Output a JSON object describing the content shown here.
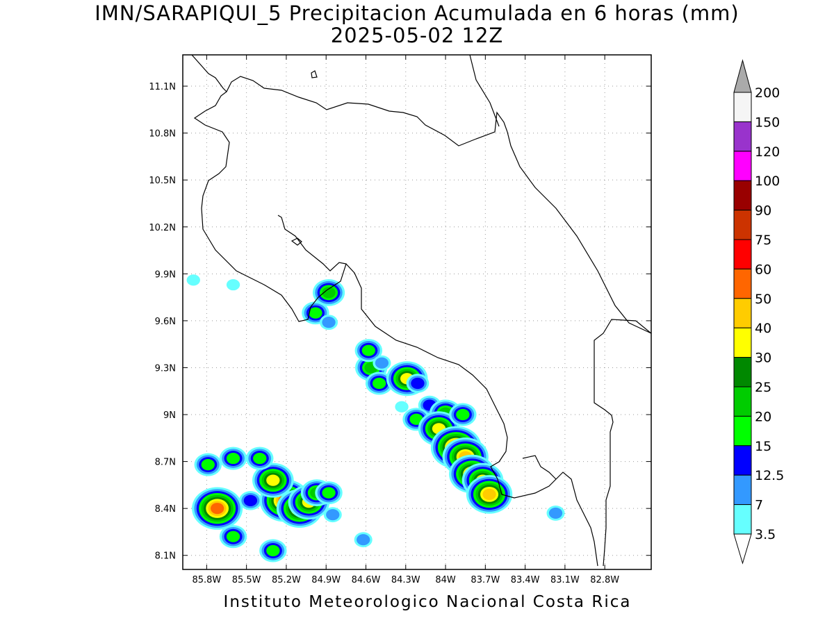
{
  "map": {
    "title": "IMN/SARAPIQUI_5 Precipitacion Acumulada en 6 horas (mm)",
    "subtitle": "2025-05-02 12Z",
    "footer": "Instituto Meteorologico Nacional Costa Rica",
    "lon_labels": [
      "85.8W",
      "85.5W",
      "85.2W",
      "84.9W",
      "84.6W",
      "84.3W",
      "84W",
      "83.7W",
      "83.4W",
      "83.1W",
      "82.8W"
    ],
    "lon_values": [
      -85.8,
      -85.5,
      -85.2,
      -84.9,
      -84.6,
      -84.3,
      -84.0,
      -83.7,
      -83.4,
      -83.1,
      -82.8
    ],
    "lat_labels": [
      "11.1N",
      "10.8N",
      "10.5N",
      "10.2N",
      "9.9N",
      "9.6N",
      "9.3N",
      "9N",
      "8.7N",
      "8.4N",
      "8.1N"
    ],
    "lat_values": [
      11.1,
      10.8,
      10.5,
      10.2,
      9.9,
      9.6,
      9.3,
      9.0,
      8.7,
      8.4,
      8.1
    ],
    "lon_range": [
      -85.98,
      -82.45
    ],
    "lat_range": [
      8.01,
      11.3
    ],
    "grid": true
  },
  "colorbar": {
    "labels": [
      "3.5",
      "7",
      "12.5",
      "15",
      "20",
      "25",
      "30",
      "40",
      "50",
      "60",
      "75",
      "90",
      "100",
      "120",
      "150",
      "200"
    ],
    "colors": [
      "#66ffff",
      "#3399ff",
      "#0000ff",
      "#00ff00",
      "#00cc00",
      "#008800",
      "#ffff00",
      "#ffcc00",
      "#ff6600",
      "#ff0000",
      "#cc3300",
      "#990000",
      "#ff00ff",
      "#9933cc",
      "#f5f5f5"
    ],
    "over_color": "#aaaaaa",
    "under_color": "#ffffff"
  },
  "precip_cells": [
    {
      "lon": -85.72,
      "lat": 8.4,
      "level": 9
    },
    {
      "lon": -85.79,
      "lat": 8.68,
      "level": 4
    },
    {
      "lon": -85.6,
      "lat": 8.72,
      "level": 4
    },
    {
      "lon": -85.6,
      "lat": 8.22,
      "level": 4
    },
    {
      "lon": -85.21,
      "lat": 8.45,
      "level": 9
    },
    {
      "lon": -85.3,
      "lat": 8.58,
      "level": 7
    },
    {
      "lon": -85.1,
      "lat": 8.4,
      "level": 8
    },
    {
      "lon": -85.03,
      "lat": 8.44,
      "level": 7
    },
    {
      "lon": -84.97,
      "lat": 8.5,
      "level": 5
    },
    {
      "lon": -84.88,
      "lat": 8.5,
      "level": 4
    },
    {
      "lon": -85.4,
      "lat": 8.72,
      "level": 4
    },
    {
      "lon": -85.47,
      "lat": 8.45,
      "level": 3
    },
    {
      "lon": -85.3,
      "lat": 8.13,
      "level": 4
    },
    {
      "lon": -84.85,
      "lat": 8.36,
      "level": 2
    },
    {
      "lon": -84.62,
      "lat": 8.2,
      "level": 2
    },
    {
      "lon": -84.88,
      "lat": 9.78,
      "level": 5
    },
    {
      "lon": -84.98,
      "lat": 9.65,
      "level": 4
    },
    {
      "lon": -84.88,
      "lat": 9.59,
      "level": 2
    },
    {
      "lon": -85.9,
      "lat": 9.86,
      "level": 1
    },
    {
      "lon": -85.6,
      "lat": 9.83,
      "level": 1
    },
    {
      "lon": -84.56,
      "lat": 9.3,
      "level": 5
    },
    {
      "lon": -84.58,
      "lat": 9.41,
      "level": 4
    },
    {
      "lon": -84.5,
      "lat": 9.2,
      "level": 4
    },
    {
      "lon": -84.48,
      "lat": 9.33,
      "level": 2
    },
    {
      "lon": -84.29,
      "lat": 9.23,
      "level": 7
    },
    {
      "lon": -84.21,
      "lat": 9.2,
      "level": 3
    },
    {
      "lon": -84.12,
      "lat": 9.06,
      "level": 3
    },
    {
      "lon": -84.22,
      "lat": 8.97,
      "level": 4
    },
    {
      "lon": -84.33,
      "lat": 9.05,
      "level": 1
    },
    {
      "lon": -84.0,
      "lat": 9.01,
      "level": 5
    },
    {
      "lon": -84.05,
      "lat": 8.91,
      "level": 7
    },
    {
      "lon": -83.87,
      "lat": 9.0,
      "level": 4
    },
    {
      "lon": -83.92,
      "lat": 8.79,
      "level": 9
    },
    {
      "lon": -83.85,
      "lat": 8.73,
      "level": 8
    },
    {
      "lon": -83.8,
      "lat": 8.62,
      "level": 8
    },
    {
      "lon": -83.72,
      "lat": 8.58,
      "level": 7
    },
    {
      "lon": -83.67,
      "lat": 8.49,
      "level": 8
    },
    {
      "lon": -83.17,
      "lat": 8.37,
      "level": 2
    }
  ]
}
